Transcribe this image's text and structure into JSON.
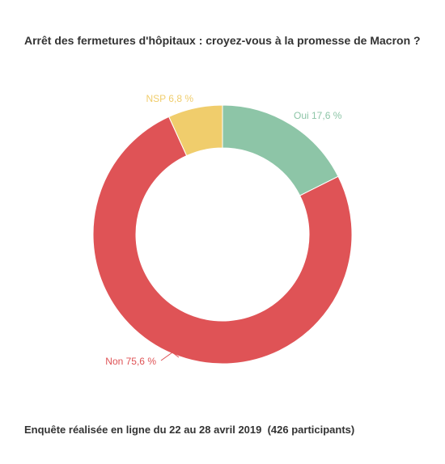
{
  "chart_data": {
    "type": "pie",
    "title": "Arrêt des fermetures d'hôpitaux : croyez-vous à la promesse de Macron ?",
    "footer": "Enquête réalisée en ligne du 22 au 28 avril 2019  (426 participants)",
    "donut": true,
    "slices": [
      {
        "label": "Oui",
        "value": 17.6,
        "display": "Oui 17,6 %",
        "color": "#8dc5a7"
      },
      {
        "label": "Non",
        "value": 75.6,
        "display": "Non 75,6 %",
        "color": "#df5356"
      },
      {
        "label": "NSP",
        "value": 6.8,
        "display": "NSP 6,8 %",
        "color": "#f0cd6c"
      }
    ]
  }
}
